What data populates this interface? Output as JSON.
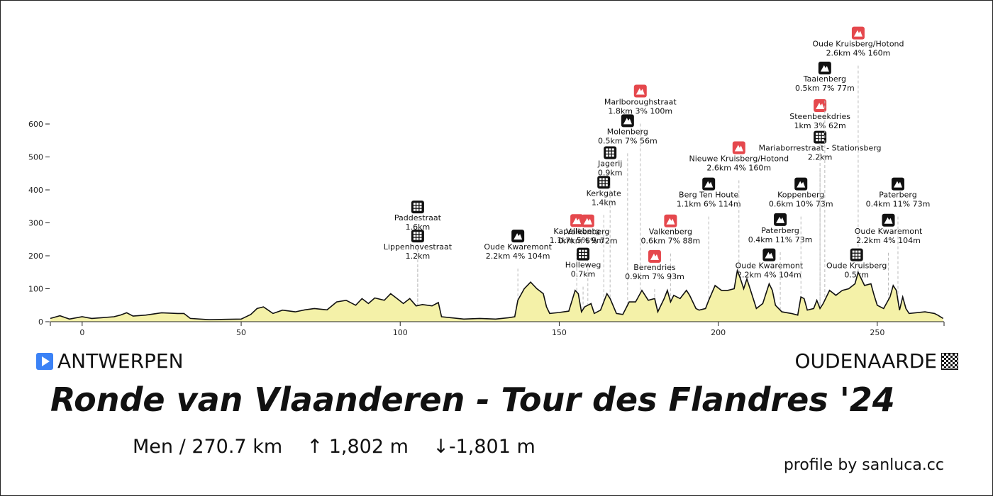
{
  "chart_data": {
    "type": "area",
    "title": "Ronde van Vlaanderen - Tour des Flandres '24",
    "xlabel": "",
    "ylabel": "",
    "xlim": [
      -10,
      271
    ],
    "ylim": [
      0,
      650
    ],
    "x_ticks": [
      0,
      50,
      100,
      150,
      200,
      250
    ],
    "y_ticks": [
      0,
      100,
      200,
      300,
      400,
      500,
      600
    ],
    "grid": false,
    "profile": [
      [
        -10,
        10
      ],
      [
        -7,
        18
      ],
      [
        -4,
        8
      ],
      [
        0,
        15
      ],
      [
        3,
        10
      ],
      [
        6,
        12
      ],
      [
        10,
        15
      ],
      [
        12,
        20
      ],
      [
        14,
        27
      ],
      [
        16,
        17
      ],
      [
        20,
        20
      ],
      [
        25,
        27
      ],
      [
        30,
        25
      ],
      [
        32,
        25
      ],
      [
        34,
        10
      ],
      [
        40,
        6
      ],
      [
        45,
        7
      ],
      [
        50,
        8
      ],
      [
        53,
        22
      ],
      [
        55,
        40
      ],
      [
        57,
        45
      ],
      [
        60,
        25
      ],
      [
        63,
        35
      ],
      [
        67,
        30
      ],
      [
        70,
        36
      ],
      [
        73,
        40
      ],
      [
        77,
        36
      ],
      [
        80,
        60
      ],
      [
        83,
        65
      ],
      [
        86,
        50
      ],
      [
        88,
        70
      ],
      [
        90,
        55
      ],
      [
        92,
        72
      ],
      [
        95,
        65
      ],
      [
        97,
        85
      ],
      [
        99,
        70
      ],
      [
        101,
        55
      ],
      [
        103,
        70
      ],
      [
        105,
        48
      ],
      [
        107,
        52
      ],
      [
        110,
        48
      ],
      [
        112,
        58
      ],
      [
        113,
        15
      ],
      [
        120,
        8
      ],
      [
        125,
        10
      ],
      [
        130,
        8
      ],
      [
        134,
        12
      ],
      [
        136,
        15
      ],
      [
        137,
        65
      ],
      [
        139,
        100
      ],
      [
        141,
        120
      ],
      [
        143,
        100
      ],
      [
        145,
        85
      ],
      [
        146,
        45
      ],
      [
        147,
        25
      ],
      [
        150,
        28
      ],
      [
        153,
        32
      ],
      [
        155,
        95
      ],
      [
        156,
        85
      ],
      [
        157,
        30
      ],
      [
        158,
        45
      ],
      [
        160,
        55
      ],
      [
        161,
        25
      ],
      [
        163,
        35
      ],
      [
        165,
        85
      ],
      [
        166,
        70
      ],
      [
        168,
        25
      ],
      [
        170,
        22
      ],
      [
        172,
        60
      ],
      [
        174,
        60
      ],
      [
        176,
        95
      ],
      [
        178,
        65
      ],
      [
        180,
        70
      ],
      [
        181,
        30
      ],
      [
        183,
        70
      ],
      [
        184,
        95
      ],
      [
        185,
        60
      ],
      [
        186,
        80
      ],
      [
        188,
        70
      ],
      [
        190,
        95
      ],
      [
        191,
        80
      ],
      [
        193,
        40
      ],
      [
        194,
        35
      ],
      [
        196,
        40
      ],
      [
        197,
        65
      ],
      [
        199,
        110
      ],
      [
        201,
        95
      ],
      [
        203,
        95
      ],
      [
        205,
        100
      ],
      [
        206,
        155
      ],
      [
        207,
        130
      ],
      [
        208,
        100
      ],
      [
        209,
        130
      ],
      [
        210,
        100
      ],
      [
        212,
        40
      ],
      [
        214,
        55
      ],
      [
        216,
        115
      ],
      [
        217,
        95
      ],
      [
        218,
        50
      ],
      [
        220,
        30
      ],
      [
        223,
        25
      ],
      [
        225,
        20
      ],
      [
        226,
        75
      ],
      [
        227,
        70
      ],
      [
        228,
        35
      ],
      [
        230,
        40
      ],
      [
        231,
        65
      ],
      [
        232,
        40
      ],
      [
        233,
        55
      ],
      [
        235,
        95
      ],
      [
        237,
        80
      ],
      [
        239,
        95
      ],
      [
        241,
        100
      ],
      [
        243,
        115
      ],
      [
        244,
        150
      ],
      [
        245,
        130
      ],
      [
        246,
        110
      ],
      [
        248,
        115
      ],
      [
        249,
        80
      ],
      [
        250,
        50
      ],
      [
        252,
        40
      ],
      [
        254,
        75
      ],
      [
        255,
        110
      ],
      [
        256,
        95
      ],
      [
        257,
        35
      ],
      [
        258,
        75
      ],
      [
        259,
        40
      ],
      [
        260,
        25
      ],
      [
        265,
        30
      ],
      [
        268,
        25
      ],
      [
        269,
        20
      ],
      [
        270.7,
        10
      ]
    ],
    "climbs": [
      {
        "name": "Paddestraat",
        "info": "1.6km",
        "km": 105.5,
        "label_y": 305,
        "icon": "cobbles"
      },
      {
        "name": "Lippenhovestraat",
        "info": "1.2km",
        "km": 105.5,
        "label_y": 217,
        "icon": "cobbles"
      },
      {
        "name": "Oude Kwaremont",
        "info": "2.2km 4% 104m",
        "km": 137,
        "label_y": 217,
        "icon": "climb"
      },
      {
        "name": "Kapelleberg",
        "info": "1.1km 5% 9m",
        "km": 155.5,
        "label_y": 264,
        "icon": "climb-red"
      },
      {
        "name": "Valkenberg",
        "info": "0.7km 6% 72m",
        "km": 159,
        "label_y": 263,
        "icon": "climb-red"
      },
      {
        "name": "Holleweg",
        "info": "0.7km",
        "km": 157.5,
        "label_y": 162,
        "icon": "cobbles"
      },
      {
        "name": "Kerkgate",
        "info": "1.4km",
        "km": 164,
        "label_y": 380,
        "icon": "cobbles"
      },
      {
        "name": "Jagerij",
        "info": "0.9km",
        "km": 166,
        "label_y": 470,
        "icon": "cobbles"
      },
      {
        "name": "Molenberg",
        "info": "0.5km 7% 56m",
        "km": 171.5,
        "label_y": 567,
        "icon": "climb"
      },
      {
        "name": "Marlboroughstraat",
        "info": "1.8km 3% 100m",
        "km": 175.5,
        "label_y": 657,
        "icon": "climb-red"
      },
      {
        "name": "Valkenberg",
        "info": "0.6km 7% 88m",
        "km": 185,
        "label_y": 263,
        "icon": "climb-red"
      },
      {
        "name": "Berendries",
        "info": "0.9km 7% 93m",
        "km": 180,
        "label_y": 155,
        "icon": "climb-red"
      },
      {
        "name": "Berg Ten Houte",
        "info": "1.1km 6% 114m",
        "km": 197,
        "label_y": 375,
        "icon": "climb"
      },
      {
        "name": "Nieuwe Kruisberg/Hotond",
        "info": "2.6km 4% 160m",
        "km": 206.5,
        "label_y": 485,
        "icon": "climb-red"
      },
      {
        "name": "Oude Kwaremont",
        "info": "2.2km 4% 104m",
        "km": 216,
        "label_y": 160,
        "icon": "climb"
      },
      {
        "name": "Paterberg",
        "info": "0.4km 11% 73m",
        "km": 219.5,
        "label_y": 267,
        "icon": "climb"
      },
      {
        "name": "Koppenberg",
        "info": "0.6km 10% 73m",
        "km": 226,
        "label_y": 375,
        "icon": "climb"
      },
      {
        "name": "Mariaborrestraat - Stationsberg",
        "info": "2.2km",
        "km": 232,
        "label_y": 517,
        "icon": "cobbles"
      },
      {
        "name": "Steenbeekdries",
        "info": "1km 3% 62m",
        "km": 232,
        "label_y": 613,
        "icon": "climb-red"
      },
      {
        "name": "Taaienberg",
        "info": "0.5km 7% 77m",
        "km": 233.5,
        "label_y": 727,
        "icon": "climb"
      },
      {
        "name": "Oude Kruisberg/Hotond",
        "info": "2.6km 4% 160m",
        "km": 244,
        "label_y": 833,
        "icon": "climb-red"
      },
      {
        "name": "Oude Kruisberg",
        "info": "0.5km",
        "km": 243.5,
        "label_y": 160,
        "icon": "cobbles"
      },
      {
        "name": "Oude Kwaremont",
        "info": "2.2km 4% 104m",
        "km": 253.5,
        "label_y": 265,
        "icon": "climb"
      },
      {
        "name": "Paterberg",
        "info": "0.4km 11% 73m",
        "km": 256.5,
        "label_y": 375,
        "icon": "climb"
      }
    ]
  },
  "start": {
    "label": "ANTWERPEN",
    "icon": "play-icon"
  },
  "finish": {
    "label": "OUDENAARDE",
    "icon": "checkered-flag-icon"
  },
  "title": "Ronde van Vlaanderen - Tour des Flandres '24",
  "stats": {
    "category": "Men",
    "distance": "270.7 km",
    "ascent": "↑ 1,802 m",
    "descent": "↓-1,801 m"
  },
  "credit": "profile by sanluca.cc",
  "colors": {
    "profile_fill": "#f4f1a8",
    "profile_stroke": "#111111",
    "climb_icon": "#111111",
    "climb_icon_red": "#e5484d",
    "leader_line": "#bbbbbb"
  }
}
